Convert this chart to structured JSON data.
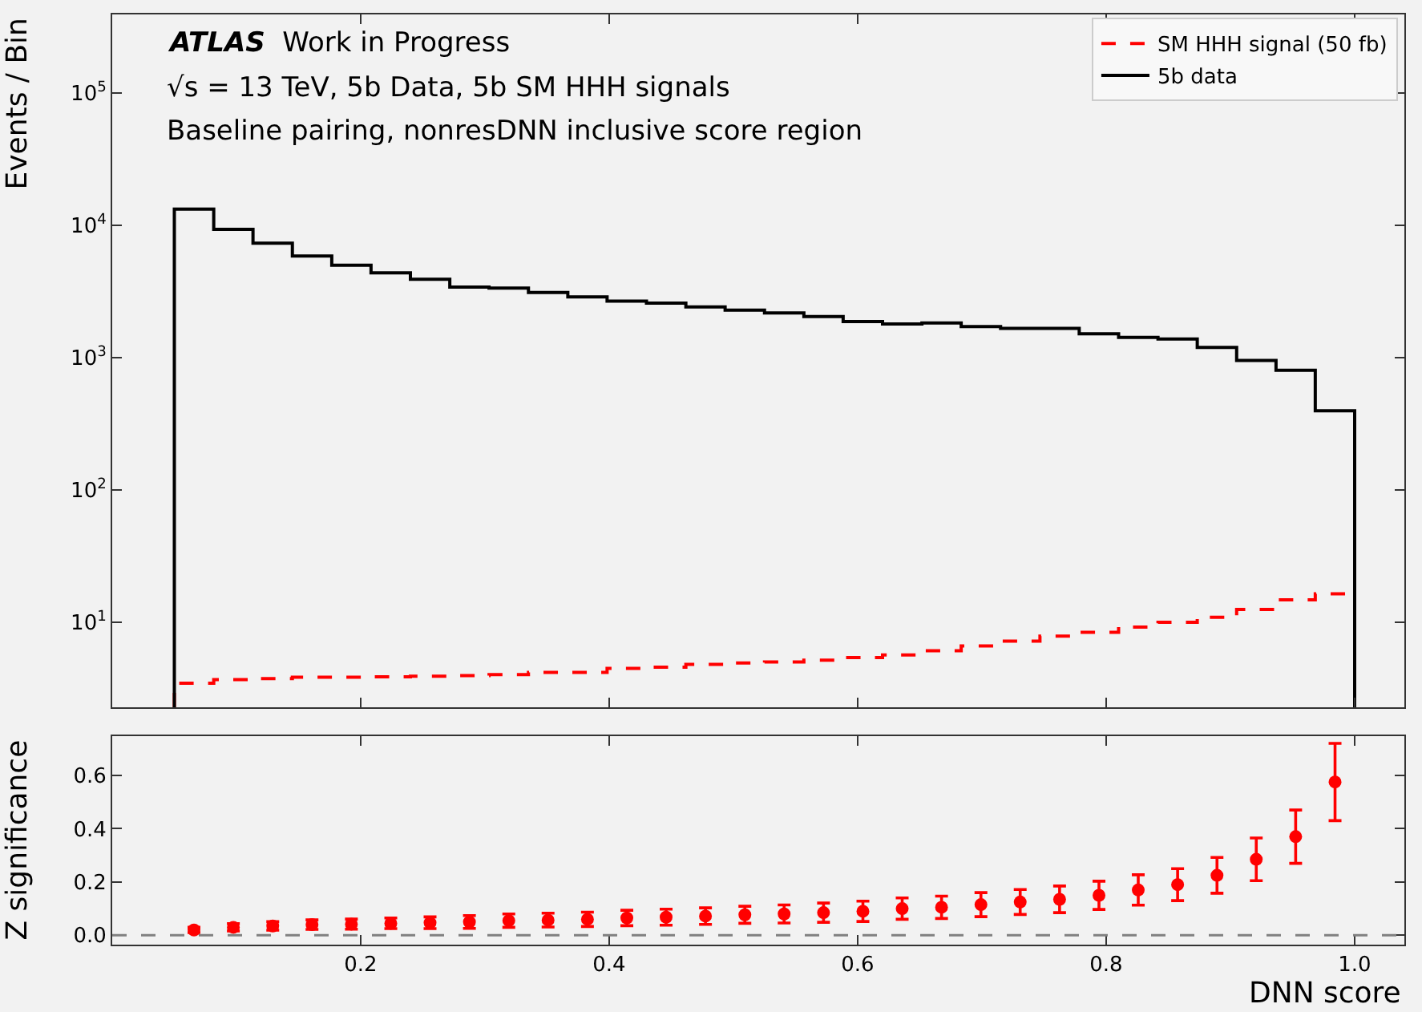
{
  "chart_data": [
    {
      "type": "histogram",
      "ylabel": "Events / Bin",
      "annotations": [
        "ATLAS  Work in Progress",
        "√s = 13 TeV, 5b Data, 5b SM HHH signals",
        "Baseline pairing, nonresDNN inclusive score region"
      ],
      "bins": [
        0.05,
        0.0817,
        0.1133,
        0.145,
        0.1767,
        0.2083,
        0.24,
        0.2717,
        0.3033,
        0.335,
        0.3667,
        0.3983,
        0.43,
        0.4617,
        0.4933,
        0.525,
        0.5567,
        0.5883,
        0.62,
        0.6517,
        0.6833,
        0.715,
        0.7467,
        0.7783,
        0.81,
        0.8417,
        0.8733,
        0.905,
        0.9367,
        0.9683,
        1.0
      ],
      "series": [
        {
          "name": "SM HHH signal (50 fb)",
          "color": "#ff0000",
          "line_style": "dashed",
          "values": [
            3.46,
            3.69,
            3.76,
            3.84,
            3.84,
            3.87,
            3.91,
            3.95,
            4.02,
            4.18,
            4.18,
            4.49,
            4.58,
            4.8,
            4.93,
            5.02,
            5.17,
            5.41,
            5.67,
            6.1,
            6.63,
            7.21,
            7.85,
            8.39,
            9.2,
            10.0,
            10.9,
            12.5,
            14.8,
            16.4
          ]
        },
        {
          "name": "5b data",
          "color": "#000000",
          "line_style": "solid",
          "values": [
            13200,
            9270,
            7300,
            5840,
            4980,
            4360,
            3900,
            3400,
            3340,
            3100,
            2870,
            2670,
            2570,
            2410,
            2280,
            2170,
            2040,
            1870,
            1790,
            1820,
            1710,
            1660,
            1660,
            1510,
            1420,
            1380,
            1190,
            950,
            800,
            396
          ]
        }
      ],
      "log": "y",
      "xlim": [
        0.0,
        1.04
      ],
      "xticks": [
        0.2,
        0.4,
        0.6,
        0.8,
        1.0
      ],
      "ylim": [
        2.28,
        390000
      ],
      "yticks": [
        {
          "value": 10,
          "label": "10$^{1}$"
        },
        {
          "value": 100,
          "label": "10$^{2}$"
        },
        {
          "value": 1000,
          "label": "10$^{3}$"
        },
        {
          "value": 10000,
          "label": "10$^{4}$"
        },
        {
          "value": 100000,
          "label": "10$^{5}$"
        }
      ],
      "legend": "top right",
      "tick_labels": "y"
    },
    {
      "type": "scatter",
      "xlabel": "DNN score",
      "ylabel": "Z significance",
      "color": "#ff0000",
      "marker": "circle",
      "x": [
        0.0658,
        0.0975,
        0.1292,
        0.1608,
        0.1925,
        0.2242,
        0.2558,
        0.2875,
        0.3192,
        0.3508,
        0.3825,
        0.4142,
        0.4458,
        0.4775,
        0.5092,
        0.5408,
        0.5725,
        0.6042,
        0.6358,
        0.6675,
        0.6992,
        0.7308,
        0.7625,
        0.7942,
        0.8258,
        0.8575,
        0.8892,
        0.9208,
        0.9525,
        0.9842
      ],
      "values": [
        0.02,
        0.03,
        0.035,
        0.04,
        0.042,
        0.045,
        0.047,
        0.05,
        0.055,
        0.057,
        0.06,
        0.065,
        0.068,
        0.072,
        0.077,
        0.08,
        0.085,
        0.09,
        0.1,
        0.105,
        0.115,
        0.125,
        0.135,
        0.15,
        0.17,
        0.19,
        0.225,
        0.285,
        0.37,
        0.575
      ],
      "errors": [
        0.01,
        0.014,
        0.016,
        0.018,
        0.019,
        0.02,
        0.022,
        0.024,
        0.025,
        0.026,
        0.027,
        0.029,
        0.03,
        0.031,
        0.032,
        0.034,
        0.036,
        0.038,
        0.04,
        0.042,
        0.045,
        0.047,
        0.05,
        0.053,
        0.057,
        0.06,
        0.067,
        0.08,
        0.1,
        0.145
      ],
      "xlim": [
        0.0,
        1.04
      ],
      "xticks": [
        0.2,
        0.4,
        0.6,
        0.8,
        {
          "value": 1.0,
          "label": "1.0"
        }
      ],
      "ylim": [
        -0.035,
        0.747
      ],
      "yticks": [
        {
          "value": 0,
          "label": "0.0"
        },
        0.2,
        0.4,
        0.6
      ],
      "ref_lines": [
        {
          "axis": "y",
          "value": 0,
          "color": "#808080",
          "line_style": "dashed"
        }
      ]
    }
  ]
}
